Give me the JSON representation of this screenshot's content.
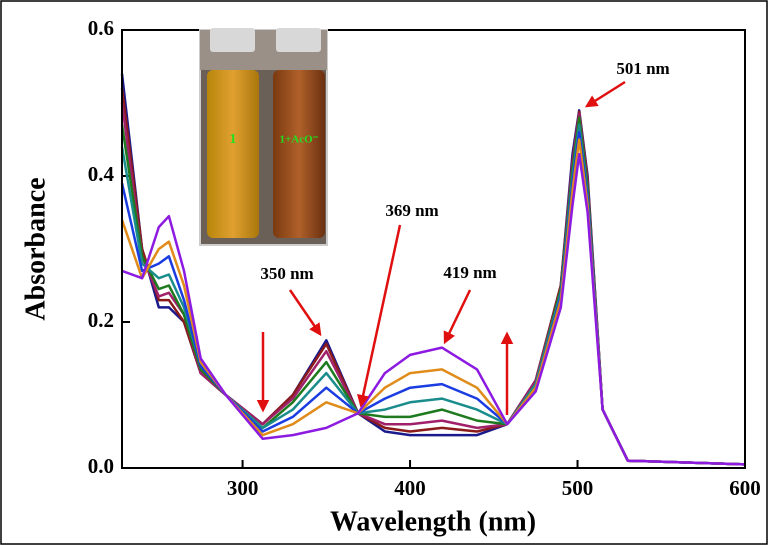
{
  "chart_data": {
    "type": "line",
    "x_label": "Wavelength (nm)",
    "y_label": "Absorbance",
    "xlim": [
      228,
      600
    ],
    "xticks": [
      300,
      400,
      500,
      600
    ],
    "ylim": [
      0,
      0.6
    ],
    "yticks": [
      {
        "value": 0,
        "label": "0.0"
      },
      0.2,
      0.4,
      0.6
    ],
    "annotations": [
      "501 nm",
      "369 nm",
      "350 nm",
      "419 nm"
    ],
    "inset_labels": [
      "1",
      "1+AcO⁻"
    ],
    "x": [
      228,
      240,
      250,
      256,
      265,
      275,
      290,
      312,
      330,
      350,
      369,
      385,
      400,
      419,
      440,
      458,
      475,
      490,
      497,
      501,
      506,
      515,
      530,
      600
    ],
    "series": [
      {
        "color": "#1a1a8c",
        "values": [
          0.54,
          0.3,
          0.22,
          0.22,
          0.2,
          0.13,
          0.1,
          0.06,
          0.1,
          0.175,
          0.075,
          0.05,
          0.045,
          0.045,
          0.045,
          0.06,
          0.12,
          0.25,
          0.43,
          0.49,
          0.4,
          0.08,
          0.01,
          0.005
        ]
      },
      {
        "color": "#8b1a1a",
        "values": [
          0.52,
          0.3,
          0.23,
          0.23,
          0.2,
          0.13,
          0.1,
          0.06,
          0.1,
          0.17,
          0.075,
          0.055,
          0.05,
          0.055,
          0.05,
          0.06,
          0.12,
          0.25,
          0.42,
          0.488,
          0.395,
          0.08,
          0.01,
          0.005
        ]
      },
      {
        "color": "#a0206a",
        "values": [
          0.5,
          0.29,
          0.235,
          0.24,
          0.21,
          0.13,
          0.1,
          0.06,
          0.095,
          0.16,
          0.075,
          0.06,
          0.06,
          0.065,
          0.055,
          0.06,
          0.12,
          0.245,
          0.42,
          0.485,
          0.39,
          0.08,
          0.01,
          0.005
        ]
      },
      {
        "color": "#1e7a1e",
        "values": [
          0.47,
          0.29,
          0.245,
          0.25,
          0.21,
          0.135,
          0.1,
          0.055,
          0.09,
          0.145,
          0.075,
          0.07,
          0.07,
          0.08,
          0.065,
          0.06,
          0.115,
          0.245,
          0.41,
          0.48,
          0.385,
          0.08,
          0.01,
          0.005
        ]
      },
      {
        "color": "#1a8c8c",
        "values": [
          0.44,
          0.28,
          0.26,
          0.265,
          0.22,
          0.14,
          0.1,
          0.055,
          0.08,
          0.13,
          0.075,
          0.08,
          0.09,
          0.095,
          0.08,
          0.06,
          0.115,
          0.24,
          0.4,
          0.47,
          0.375,
          0.08,
          0.01,
          0.005
        ]
      },
      {
        "color": "#1a3ce0",
        "values": [
          0.39,
          0.27,
          0.28,
          0.29,
          0.23,
          0.14,
          0.1,
          0.05,
          0.07,
          0.11,
          0.075,
          0.095,
          0.11,
          0.115,
          0.095,
          0.06,
          0.11,
          0.235,
          0.39,
          0.46,
          0.37,
          0.08,
          0.01,
          0.005
        ]
      },
      {
        "color": "#e08c1a",
        "values": [
          0.34,
          0.26,
          0.3,
          0.31,
          0.25,
          0.145,
          0.1,
          0.045,
          0.06,
          0.09,
          0.075,
          0.11,
          0.13,
          0.135,
          0.11,
          0.06,
          0.11,
          0.23,
          0.38,
          0.45,
          0.36,
          0.08,
          0.01,
          0.005
        ]
      },
      {
        "color": "#8c1ae0",
        "values": [
          0.27,
          0.26,
          0.33,
          0.345,
          0.27,
          0.15,
          0.1,
          0.04,
          0.045,
          0.055,
          0.075,
          0.13,
          0.155,
          0.165,
          0.135,
          0.06,
          0.105,
          0.22,
          0.36,
          0.43,
          0.35,
          0.08,
          0.01,
          0.005
        ]
      }
    ]
  }
}
